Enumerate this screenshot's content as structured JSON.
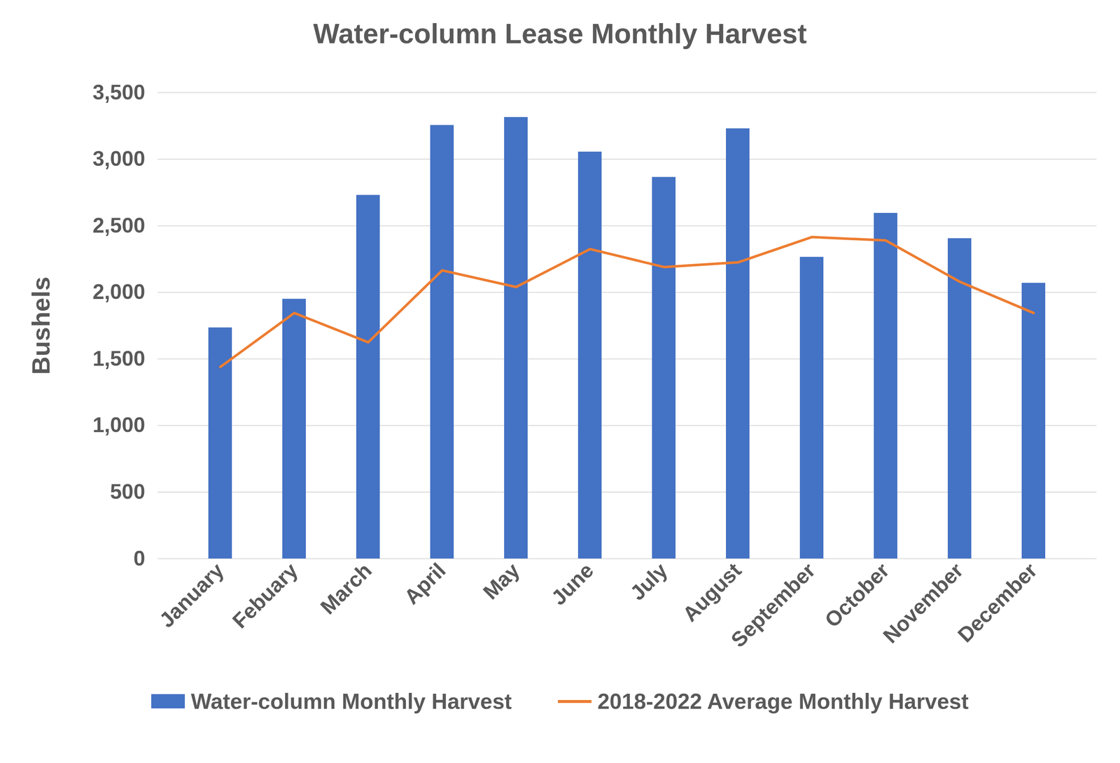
{
  "chart_data": {
    "type": "bar",
    "title": "Water-column Lease Monthly Harvest",
    "y_label": "Bushels",
    "categories": [
      "January",
      "Febuary",
      "March",
      "April",
      "May",
      "June",
      "July",
      "August",
      "September",
      "October",
      "November",
      "December"
    ],
    "series": [
      {
        "name": "Water-column Monthly Harvest",
        "type": "bar",
        "color": "#4472c4",
        "values": [
          1735,
          1950,
          2730,
          3255,
          3315,
          3055,
          2865,
          3230,
          2265,
          2595,
          2405,
          2070
        ]
      },
      {
        "name": "2018-2022 Average Monthly Harvest",
        "type": "line",
        "color": "#ed7d31",
        "values": [
          1440,
          1845,
          1625,
          2165,
          2040,
          2325,
          2190,
          2225,
          2415,
          2390,
          2080,
          1845
        ]
      }
    ],
    "ylim": [
      0,
      3500
    ],
    "yticks": [
      0,
      500,
      {
        "value": 1000,
        "label": "1,000"
      },
      {
        "value": 1500,
        "label": "1,500"
      },
      {
        "value": 2000,
        "label": "2,000"
      },
      {
        "value": 2500,
        "label": "2,500"
      },
      {
        "value": 3000,
        "label": "3,000"
      },
      {
        "value": 3500,
        "label": "3,500"
      }
    ],
    "grid": true,
    "legend": "bottom"
  }
}
